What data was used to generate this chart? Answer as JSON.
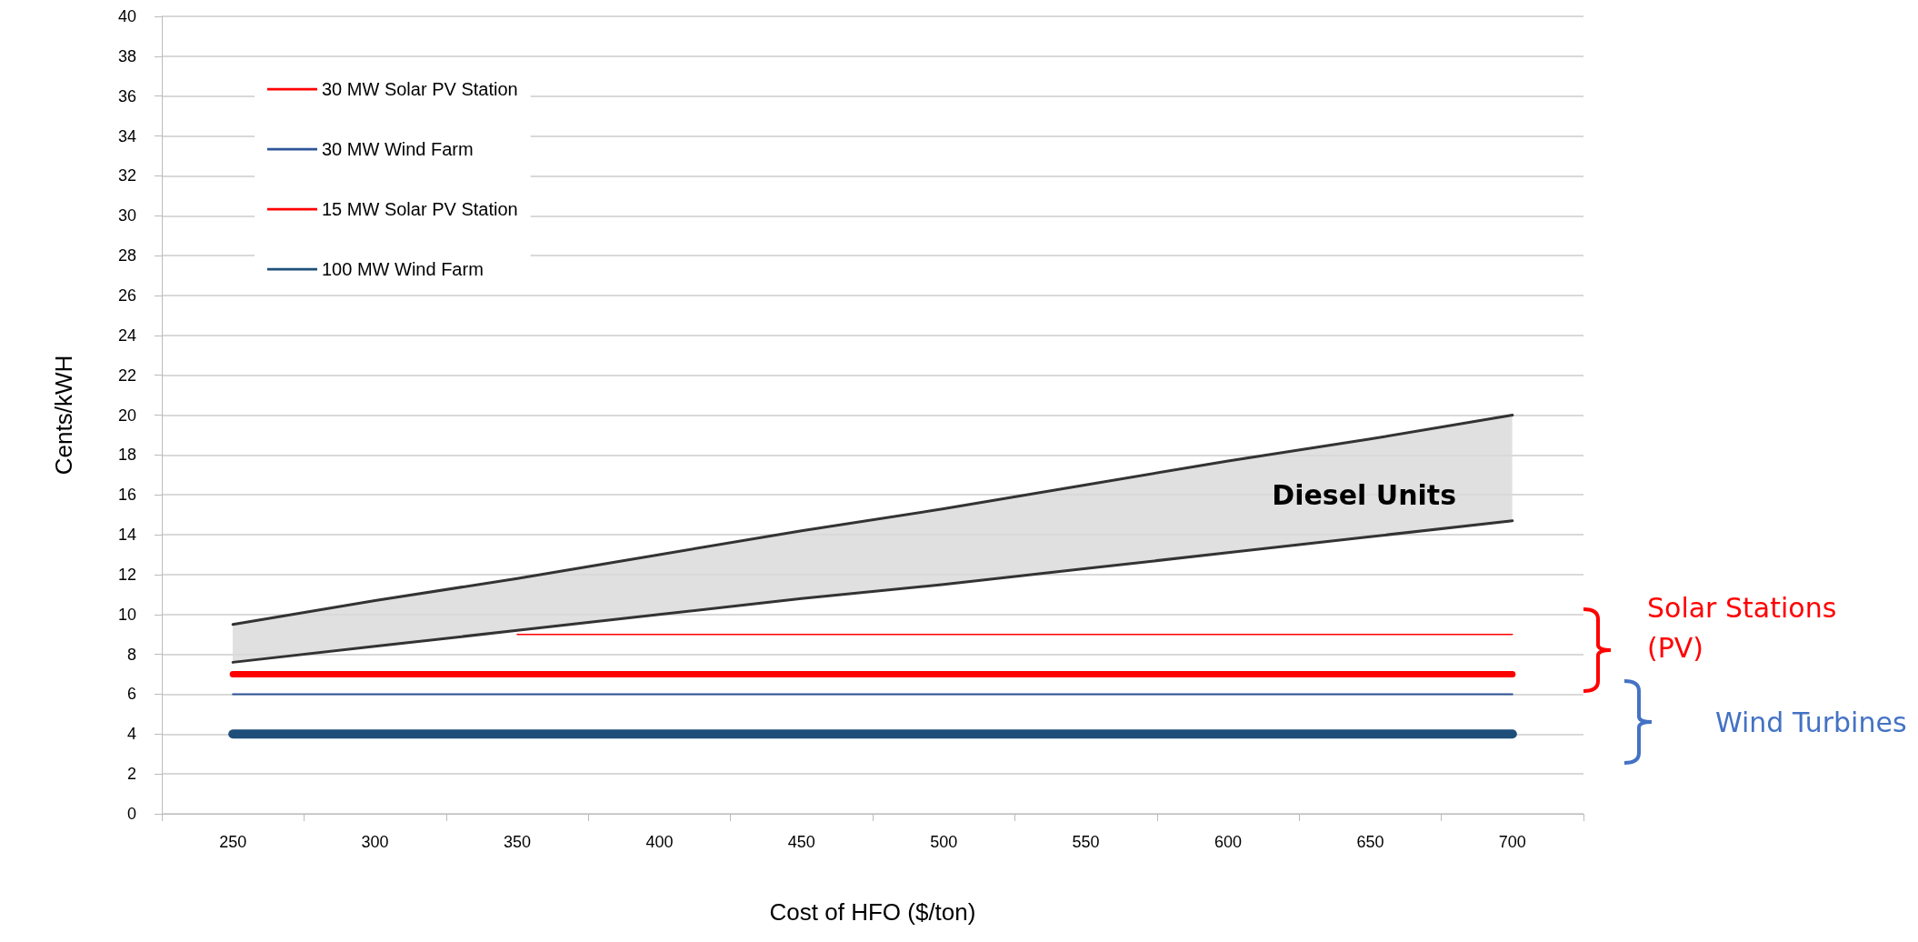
{
  "chart_data": {
    "type": "line",
    "xlabel": "Cost of HFO ($/ton)",
    "ylabel": "Cents/kWH",
    "categories": [
      "250",
      "300",
      "350",
      "400",
      "450",
      "500",
      "550",
      "600",
      "650",
      "700"
    ],
    "ylim": [
      0,
      40
    ],
    "yticks": [
      0,
      2,
      4,
      6,
      8,
      10,
      12,
      14,
      16,
      18,
      20,
      22,
      24,
      26,
      28,
      30,
      32,
      34,
      36,
      38,
      40
    ],
    "grid": "y",
    "legend": "top left",
    "marker": "none",
    "line_style": "solid",
    "series": [
      {
        "name": "30 MW Solar PV Station",
        "color": "#ff0000",
        "values": [
          7,
          7,
          7,
          7,
          7,
          7,
          7,
          7,
          7,
          7
        ]
      },
      {
        "name": "30 MW Wind Farm",
        "color": "#2f5597",
        "values": [
          6,
          6,
          6,
          6,
          6,
          6,
          6,
          6,
          6,
          6
        ]
      },
      {
        "name": "15 MW Solar PV Station",
        "color": "#ff0000",
        "values": [
          null,
          null,
          9,
          9,
          9,
          9,
          9,
          9,
          9,
          9
        ]
      },
      {
        "name": "100 MW Wind Farm",
        "color": "#1f4e79",
        "values": [
          4,
          4,
          4,
          4,
          4,
          4,
          4,
          4,
          4,
          4
        ]
      },
      {
        "color": "#333333",
        "values": [
          9.5,
          10.7,
          11.8,
          13.0,
          14.2,
          15.3,
          16.5,
          17.7,
          18.8,
          20.0
        ]
      },
      {
        "color": "#333333",
        "values": [
          7.6,
          8.4,
          9.2,
          10.0,
          10.8,
          11.5,
          12.3,
          13.1,
          13.9,
          14.7
        ]
      }
    ],
    "annotations": [
      "Diesel Units",
      "Solar Stations (PV)",
      "Wind Turbines"
    ]
  }
}
